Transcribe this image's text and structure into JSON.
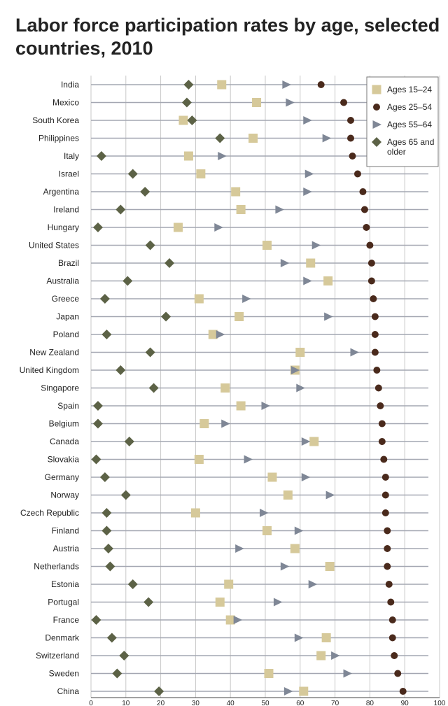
{
  "title": "Labor force participation rates by age, selected countries, 2010",
  "colors": {
    "ages_15_24": "#d6c99a",
    "ages_25_54": "#4a2a1c",
    "ages_55_64": "#7f8796",
    "ages_65_older": "#5c6246",
    "row_line": "#a4a7b2",
    "grid": "#c9c9c9",
    "axis": "#444444"
  },
  "chart_data": {
    "type": "scatter",
    "title": "Labor force participation rates by age, selected countries, 2010",
    "xlim": [
      0,
      100
    ],
    "xticks": [
      0,
      10,
      20,
      30,
      40,
      50,
      60,
      70,
      80,
      90,
      100
    ],
    "grid": true,
    "legend_position": "top-right",
    "categories": [
      "India",
      "Mexico",
      "South Korea",
      "Philippines",
      "Italy",
      "Israel",
      "Argentina",
      "Ireland",
      "Hungary",
      "United States",
      "Brazil",
      "Australia",
      "Greece",
      "Japan",
      "Poland",
      "New Zealand",
      "United Kingdom",
      "Singapore",
      "Spain",
      "Belgium",
      "Canada",
      "Slovakia",
      "Germany",
      "Norway",
      "Czech Republic",
      "Finland",
      "Austria",
      "Netherlands",
      "Estonia",
      "Portugal",
      "France",
      "Denmark",
      "Switzerland",
      "Sweden",
      "China"
    ],
    "series": [
      {
        "name": "Ages 15–24",
        "marker": "square",
        "values": [
          37.5,
          47.5,
          26.5,
          46.5,
          28,
          31.5,
          41.5,
          43,
          25,
          50.5,
          63,
          68,
          31,
          42.5,
          35,
          60,
          58.5,
          38.5,
          43,
          32.5,
          64,
          31,
          52,
          56.5,
          30,
          50.5,
          58.5,
          68.5,
          39.5,
          37,
          40,
          67.5,
          66,
          51,
          61
        ]
      },
      {
        "name": "Ages 25–54",
        "marker": "circle",
        "values": [
          66,
          72.5,
          74.5,
          74.5,
          75,
          76.5,
          78,
          78.5,
          79,
          80,
          80.5,
          80.5,
          81,
          81.5,
          81.5,
          81.5,
          82,
          82.5,
          83,
          83.5,
          83.5,
          84,
          84.5,
          84.5,
          84.5,
          85,
          85,
          85,
          85.5,
          86,
          86.5,
          86.5,
          87,
          88,
          89.5
        ]
      },
      {
        "name": "Ages 55–64",
        "marker": "triangle",
        "values": [
          56,
          57,
          62,
          67.5,
          37.5,
          62.5,
          62,
          54,
          36.5,
          64.5,
          55.5,
          62,
          44.5,
          68,
          37,
          75.5,
          58.5,
          60,
          50,
          38.5,
          61.5,
          45,
          61.5,
          68.5,
          49.5,
          59.5,
          42.5,
          55.5,
          63.5,
          53.5,
          42,
          59.5,
          70,
          73.5,
          56.5
        ]
      },
      {
        "name": "Ages 65 and older",
        "marker": "diamond",
        "values": [
          28,
          27.5,
          29,
          37,
          3,
          12,
          15.5,
          8.5,
          2,
          17,
          22.5,
          10.5,
          4,
          21.5,
          4.5,
          17,
          8.5,
          18,
          2,
          2,
          11,
          1.5,
          4,
          10,
          4.5,
          4.5,
          5,
          5.5,
          12,
          16.5,
          1.5,
          6,
          9.5,
          7.5,
          19.5
        ]
      }
    ]
  }
}
